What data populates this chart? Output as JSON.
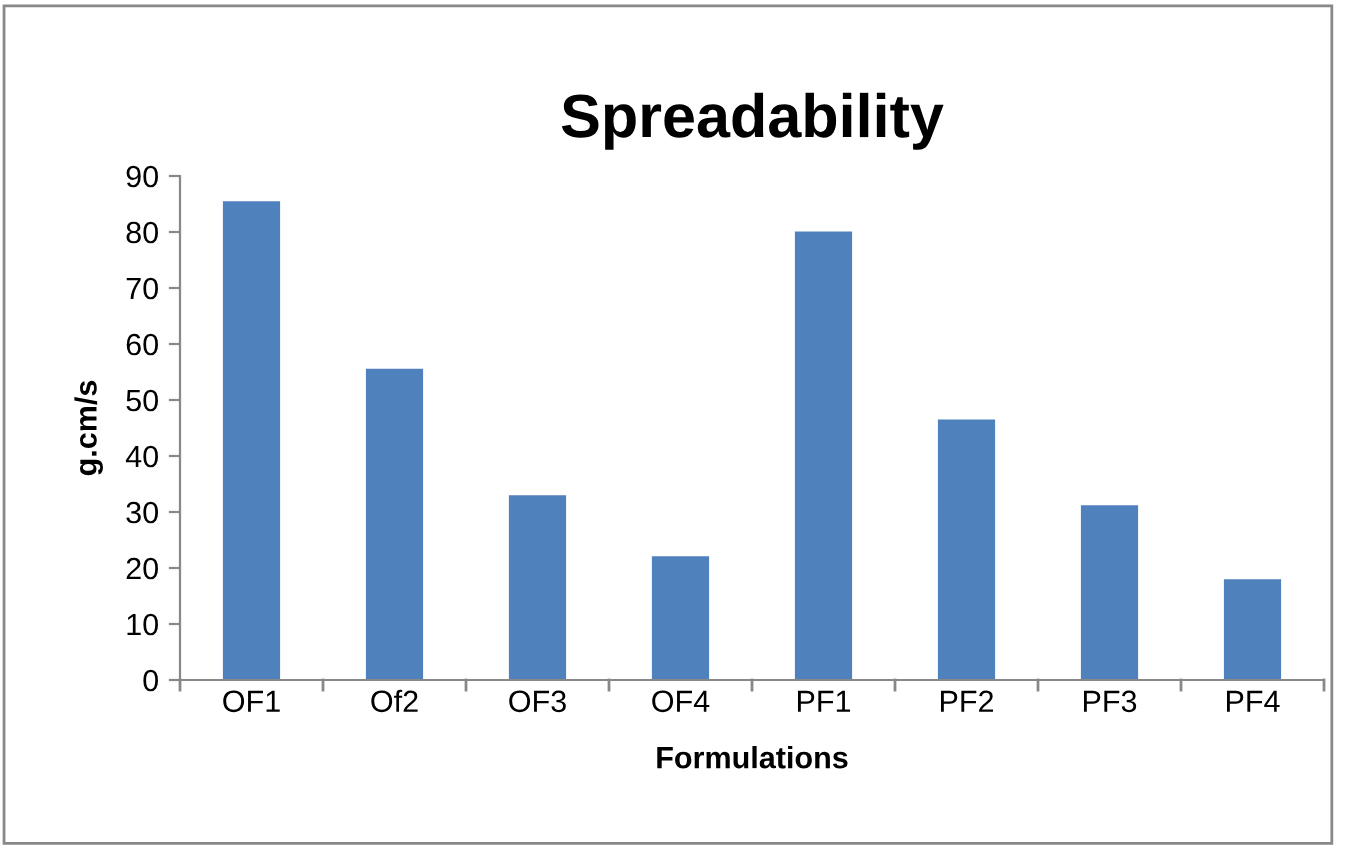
{
  "chart_data": {
    "type": "bar",
    "title": "Spreadability",
    "xlabel": "Formulations",
    "ylabel": "g.cm/s",
    "categories": [
      "OF1",
      "Of2",
      "OF3",
      "OF4",
      "PF1",
      "PF2",
      "PF3",
      "PF4"
    ],
    "values": [
      85.5,
      55.6,
      33.0,
      22.1,
      80.1,
      46.5,
      31.2,
      18.0
    ],
    "color": "#4f81bd",
    "ylim": [
      0,
      90
    ],
    "yticks": [
      0,
      10,
      20,
      30,
      40,
      50,
      60,
      70,
      80,
      90
    ],
    "grid": false,
    "legend": false
  }
}
